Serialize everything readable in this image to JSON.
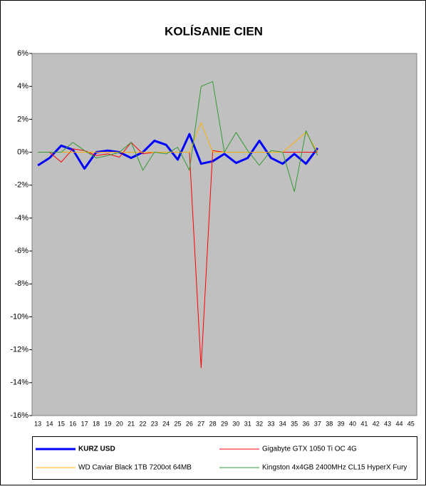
{
  "chart_data": {
    "type": "line",
    "title": "KOLÍSANIE CIEN",
    "categories": [
      "13",
      "14",
      "15",
      "16",
      "17",
      "18",
      "19",
      "20",
      "21",
      "22",
      "23",
      "24",
      "25",
      "26",
      "27",
      "28",
      "29",
      "30",
      "31",
      "32",
      "33",
      "34",
      "35",
      "36",
      "37",
      "38",
      "39",
      "40",
      "41",
      "42",
      "43",
      "44",
      "45"
    ],
    "series": [
      {
        "name": "KURZ USD",
        "color": "#0000ff",
        "width": 3,
        "values": [
          -0.8,
          -0.35,
          0.4,
          0.15,
          -1.0,
          0.0,
          0.1,
          0.0,
          -0.35,
          0.0,
          0.7,
          0.45,
          -0.45,
          1.1,
          -0.7,
          -0.55,
          -0.1,
          -0.65,
          -0.35,
          0.7,
          -0.35,
          -0.7,
          -0.1,
          -0.7,
          0.25,
          null,
          null,
          null,
          null,
          null,
          null,
          null,
          null
        ]
      },
      {
        "name": "Gigabyte GTX 1050 Ti OC 4G",
        "color": "#ff0000",
        "width": 1,
        "values": [
          0,
          0,
          -0.6,
          0.2,
          0.1,
          -0.2,
          -0.1,
          -0.3,
          0.6,
          -0.1,
          0,
          0,
          0,
          0,
          -13.1,
          0.1,
          0,
          0,
          0,
          0,
          0,
          0,
          0,
          0,
          0,
          null,
          null,
          null,
          null,
          null,
          null,
          null,
          null
        ]
      },
      {
        "name": "WD Caviar Black 1TB 7200ot 64MB",
        "color": "#ffb000",
        "width": 1,
        "values": [
          0,
          0,
          0,
          0,
          0,
          0,
          0,
          0,
          0,
          0,
          0,
          0,
          0,
          0,
          1.8,
          0,
          0,
          0,
          0,
          0,
          0,
          0,
          0.6,
          1.2,
          0,
          null,
          null,
          null,
          null,
          null,
          null,
          null,
          null
        ]
      },
      {
        "name": "Kingston 4x4GB 2400MHz CL15 HyperX Fury",
        "color": "#339933",
        "width": 1,
        "values": [
          0,
          0,
          0,
          0.6,
          0.1,
          -0.35,
          -0.2,
          0,
          0.6,
          -1.1,
          0,
          -0.1,
          0.3,
          -1.1,
          4.0,
          4.3,
          0,
          1.2,
          0.1,
          -0.8,
          0.1,
          0,
          -2.4,
          1.3,
          -0.2,
          null,
          null,
          null,
          null,
          null,
          null,
          null,
          null
        ]
      }
    ],
    "ylim": [
      -16,
      6
    ],
    "yticks": [
      {
        "value": -16,
        "label": "-16%"
      },
      {
        "value": -14,
        "label": "-14%"
      },
      {
        "value": -12,
        "label": "-12%"
      },
      {
        "value": -10,
        "label": "-10%"
      },
      {
        "value": -8,
        "label": "-8%"
      },
      {
        "value": -6,
        "label": "-6%"
      },
      {
        "value": -4,
        "label": "-4%"
      },
      {
        "value": -2,
        "label": "-2%"
      },
      {
        "value": 0,
        "label": "0%"
      },
      {
        "value": 2,
        "label": "2%"
      },
      {
        "value": 4,
        "label": "4%"
      },
      {
        "value": 6,
        "label": "6%"
      }
    ],
    "grid": false
  }
}
